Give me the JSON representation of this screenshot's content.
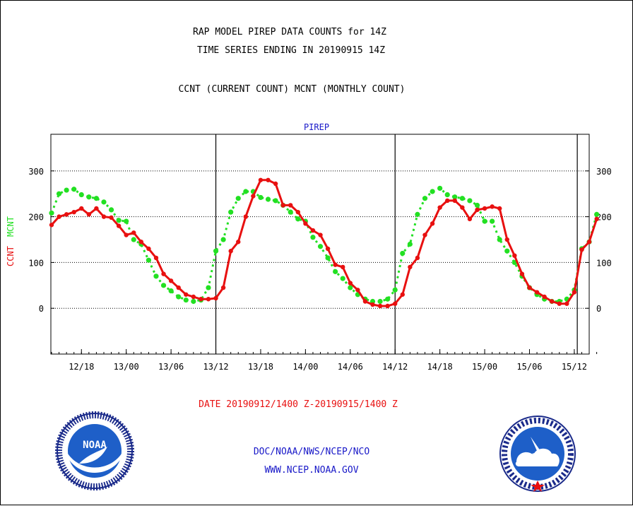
{
  "title_line1": "RAP MODEL PIREP DATA COUNTS for 14Z",
  "title_line2": "TIME SERIES ENDING IN 20190915 14Z",
  "subtitle": "CCNT (CURRENT COUNT) MCNT (MONTHLY COUNT)",
  "date_range": "DATE 20190912/1400 Z-20190915/1400 Z",
  "footer_org": "DOC/NOAA/NWS/NCEP/NCO",
  "footer_url": "WWW.NCEP.NOAA.GOV",
  "logo_left_text": "NOAA",
  "colors": {
    "ccnt": "#e81010",
    "mcnt": "#22e022",
    "text_blue": "#1818c8"
  },
  "chart_data": {
    "type": "line",
    "title": "PIREP",
    "ylabel_series": [
      "CCNT",
      "MCNT"
    ],
    "ylim": [
      -100,
      380
    ],
    "yticks": [
      0,
      100,
      200,
      300
    ],
    "x_start": "12/14",
    "x_step_hours": 1,
    "xticks": [
      {
        "index": 4,
        "label": "12/18"
      },
      {
        "index": 10,
        "label": "13/00"
      },
      {
        "index": 16,
        "label": "13/06"
      },
      {
        "index": 22,
        "label": "13/12"
      },
      {
        "index": 28,
        "label": "13/18"
      },
      {
        "index": 34,
        "label": "14/00"
      },
      {
        "index": 40,
        "label": "14/06"
      },
      {
        "index": 46,
        "label": "14/12"
      },
      {
        "index": 52,
        "label": "14/18"
      },
      {
        "index": 58,
        "label": "15/00"
      },
      {
        "index": 64,
        "label": "15/06"
      },
      {
        "index": 70,
        "label": "15/12"
      }
    ],
    "day_boundaries": [
      22.0,
      46.0,
      70.4
    ],
    "grid": true,
    "series": [
      {
        "name": "CCNT",
        "color": "#e81010",
        "values": [
          182,
          200,
          205,
          210,
          218,
          205,
          218,
          200,
          198,
          180,
          160,
          165,
          145,
          130,
          110,
          75,
          60,
          45,
          30,
          25,
          20,
          20,
          22,
          45,
          125,
          145,
          200,
          245,
          280,
          280,
          272,
          225,
          225,
          210,
          185,
          170,
          160,
          130,
          95,
          90,
          55,
          40,
          15,
          8,
          5,
          5,
          10,
          30,
          90,
          110,
          160,
          185,
          220,
          235,
          235,
          220,
          195,
          215,
          218,
          222,
          218,
          150,
          115,
          75,
          45,
          35,
          25,
          15,
          10,
          10,
          35,
          128,
          145,
          195
        ]
      },
      {
        "name": "MCNT",
        "color": "#22e022",
        "values": [
          208,
          250,
          258,
          260,
          248,
          243,
          240,
          232,
          215,
          192,
          190,
          150,
          140,
          105,
          70,
          50,
          38,
          25,
          18,
          15,
          18,
          45,
          125,
          150,
          210,
          240,
          255,
          255,
          242,
          238,
          235,
          225,
          210,
          195,
          190,
          155,
          135,
          110,
          80,
          65,
          45,
          30,
          20,
          15,
          15,
          20,
          40,
          120,
          140,
          205,
          240,
          255,
          262,
          248,
          243,
          240,
          235,
          225,
          190,
          190,
          150,
          125,
          100,
          70,
          45,
          30,
          20,
          15,
          15,
          20,
          40,
          130,
          145,
          205
        ]
      }
    ]
  }
}
